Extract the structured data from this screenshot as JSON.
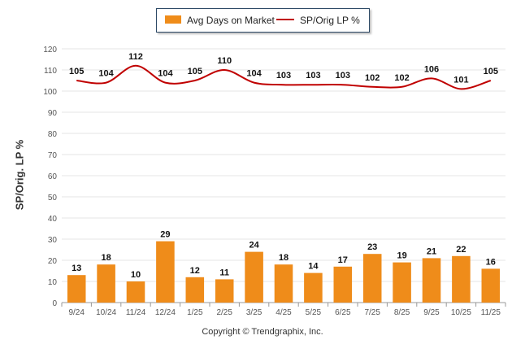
{
  "chart_data": {
    "type": "bar+line",
    "categories": [
      "9/24",
      "10/24",
      "11/24",
      "12/24",
      "1/25",
      "2/25",
      "3/25",
      "4/25",
      "5/25",
      "6/25",
      "7/25",
      "8/25",
      "9/25",
      "10/25",
      "11/25"
    ],
    "series": [
      {
        "name": "Avg Days on Market",
        "type": "bar",
        "color": "#ef8c1a",
        "values": [
          13,
          18,
          10,
          29,
          12,
          11,
          24,
          18,
          14,
          17,
          23,
          19,
          21,
          22,
          16
        ]
      },
      {
        "name": "SP/Orig LP %",
        "type": "line",
        "color": "#c00000",
        "values": [
          105,
          104,
          112,
          104,
          105,
          110,
          104,
          103,
          103,
          103,
          102,
          102,
          106,
          101,
          105
        ]
      }
    ],
    "ylabel": "SP/Orig. LP %",
    "ylim": [
      0,
      120
    ],
    "yticks": [
      0,
      10,
      20,
      30,
      40,
      50,
      60,
      70,
      80,
      90,
      100,
      110,
      120
    ],
    "grid": true,
    "legend": "top-center"
  },
  "copyright": "Copyright © Trendgraphix, Inc."
}
